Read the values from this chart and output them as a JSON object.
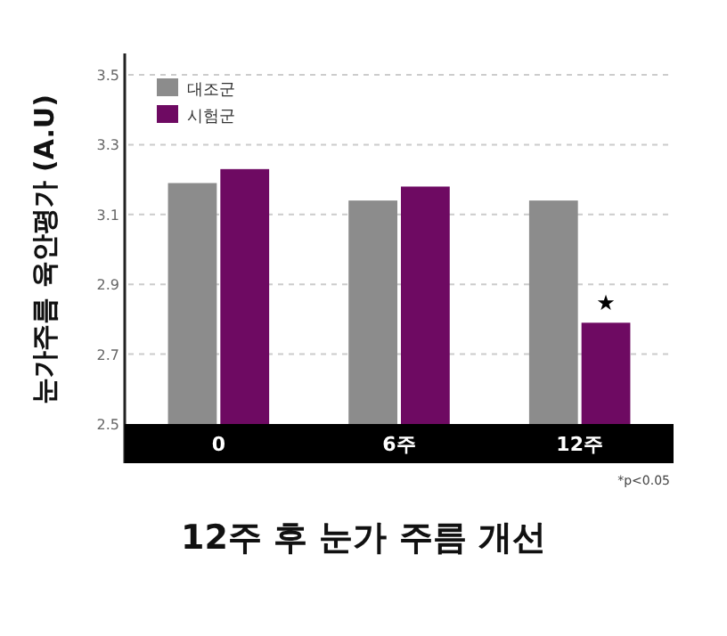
{
  "chart_data": {
    "type": "bar",
    "title": "12주 후 눈가 주름 개선",
    "ylabel": "눈가주름 육안평가 (A.U)",
    "categories": [
      "0",
      "6주",
      "12주"
    ],
    "series": [
      {
        "name": "대조군",
        "color": "#8c8c8c",
        "values": [
          3.19,
          3.14,
          3.14
        ]
      },
      {
        "name": "시험군",
        "color": "#6e0a62",
        "values": [
          3.23,
          3.18,
          2.79
        ]
      }
    ],
    "ylim": [
      2.5,
      3.5
    ],
    "yticks": [
      2.5,
      2.7,
      2.9,
      3.1,
      3.3,
      3.5
    ],
    "grid": "y",
    "legend": "top left",
    "annotations": [
      {
        "text": "★",
        "x": "12주",
        "y": 2.79
      },
      "*p<0.05"
    ]
  }
}
